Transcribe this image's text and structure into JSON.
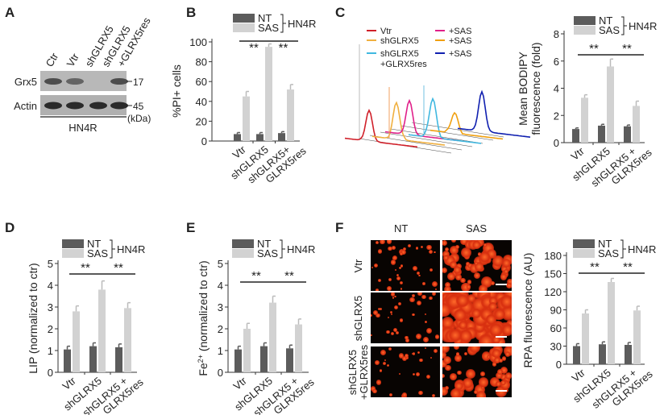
{
  "colors": {
    "NT": "#5c5c5c",
    "SAS": "#d2d2d2",
    "axis": "#333333"
  },
  "panel_labels": [
    "A",
    "B",
    "C",
    "D",
    "E",
    "F"
  ],
  "blot": {
    "lanes": [
      "Ctr",
      "Vtr",
      "shGLRX5",
      "shGLRX5",
      "+GLRX5res"
    ],
    "rows": [
      "Grx5",
      "Actin"
    ],
    "markers": [
      "17",
      "45"
    ],
    "unit": "(kDa)",
    "cell_line": "HN4R"
  },
  "flow": {
    "legend": [
      {
        "label": "Vtr",
        "color": "#d0202a"
      },
      {
        "label": "shGLRX5",
        "color": "#f0b040"
      },
      {
        "label": "shGLRX5",
        "label2": "+GLRX5res",
        "color": "#40b8e0"
      },
      {
        "label": "+SAS",
        "color": "#e0208a"
      },
      {
        "label": "+SAS",
        "color": "#f0a010"
      },
      {
        "label": "+SAS",
        "color": "#1020b0"
      }
    ]
  },
  "micrographs": {
    "columns": [
      "NT",
      "SAS"
    ],
    "rows": [
      [
        "Vtr"
      ],
      [
        "shGLRX5"
      ],
      [
        "shGLRX5",
        "+GLRX5res"
      ]
    ]
  },
  "chart_data": [
    {
      "id": "B",
      "type": "bar",
      "legend": {
        "entries": [
          "NT",
          "SAS"
        ],
        "group_label": "HN4R"
      },
      "categories": [
        [
          "Vtr"
        ],
        [
          "shGLRX5"
        ],
        [
          "shGLRX5+",
          "GLRX5res"
        ]
      ],
      "ylabel": [
        "%PI+ cells"
      ],
      "ylim": [
        0,
        100
      ],
      "yticks": [
        0,
        20,
        40,
        60,
        80,
        100
      ],
      "series": [
        {
          "name": "NT",
          "values": [
            7,
            7,
            8
          ],
          "errors": [
            1.5,
            1.5,
            1.5
          ]
        },
        {
          "name": "SAS",
          "values": [
            45,
            95,
            52
          ],
          "errors": [
            5,
            3,
            5
          ]
        }
      ],
      "significance": [
        {
          "from": 0,
          "to": 1,
          "label": "**"
        },
        {
          "from": 1,
          "to": 2,
          "label": "**"
        }
      ]
    },
    {
      "id": "C",
      "type": "bar",
      "legend": {
        "entries": [
          "NT",
          "SAS"
        ],
        "group_label": "HN4R"
      },
      "categories": [
        [
          "Vtr"
        ],
        [
          "shGLRX5"
        ],
        [
          "shGLRX5 +",
          "GLRX5res"
        ]
      ],
      "ylabel": [
        "Mean BODIPY",
        "fluorescence (fold)"
      ],
      "ylim": [
        0,
        8
      ],
      "yticks": [
        0,
        2,
        4,
        6,
        8
      ],
      "series": [
        {
          "name": "NT",
          "values": [
            1.0,
            1.25,
            1.2
          ],
          "errors": [
            0.08,
            0.1,
            0.1
          ]
        },
        {
          "name": "SAS",
          "values": [
            3.3,
            5.6,
            2.7
          ],
          "errors": [
            0.22,
            0.55,
            0.35
          ]
        }
      ],
      "significance": [
        {
          "from": 0,
          "to": 1,
          "label": "**"
        },
        {
          "from": 1,
          "to": 2,
          "label": "**"
        }
      ]
    },
    {
      "id": "D",
      "type": "bar",
      "legend": {
        "entries": [
          "NT",
          "SAS"
        ],
        "group_label": "HN4R"
      },
      "categories": [
        [
          "Vtr"
        ],
        [
          "shGLRX5"
        ],
        [
          "shGLRX5 +",
          "GLRX5res"
        ]
      ],
      "ylabel": [
        "LIP (normalized to ctr)"
      ],
      "ylim": [
        0,
        5
      ],
      "yticks": [
        0,
        1,
        2,
        3,
        4,
        5
      ],
      "series": [
        {
          "name": "NT",
          "values": [
            1.05,
            1.2,
            1.15
          ],
          "errors": [
            0.15,
            0.15,
            0.15
          ]
        },
        {
          "name": "SAS",
          "values": [
            2.8,
            3.8,
            2.95
          ],
          "errors": [
            0.25,
            0.4,
            0.25
          ]
        }
      ],
      "significance": [
        {
          "from": 0,
          "to": 1,
          "label": "**"
        },
        {
          "from": 1,
          "to": 2,
          "label": "**"
        }
      ]
    },
    {
      "id": "E",
      "type": "bar",
      "legend": {
        "entries": [
          "NT",
          "SAS"
        ],
        "group_label": "HN4R"
      },
      "categories": [
        [
          "Vtr"
        ],
        [
          "shGLRX5"
        ],
        [
          "shGLRX5 +",
          "GLRX5res"
        ]
      ],
      "ylabel": [
        "Fe",
        "2+",
        " (normalized to ctr)"
      ],
      "ylim": [
        0,
        5
      ],
      "yticks": [
        0,
        1,
        2,
        3,
        4,
        5
      ],
      "series": [
        {
          "name": "NT",
          "values": [
            1.05,
            1.2,
            1.1
          ],
          "errors": [
            0.15,
            0.15,
            0.15
          ]
        },
        {
          "name": "SAS",
          "values": [
            2.0,
            3.2,
            2.2
          ],
          "errors": [
            0.25,
            0.3,
            0.25
          ]
        }
      ],
      "significance": [
        {
          "from": 0,
          "to": 1,
          "label": "**"
        },
        {
          "from": 1,
          "to": 2,
          "label": "**"
        }
      ]
    },
    {
      "id": "F",
      "type": "bar",
      "legend": {
        "entries": [
          "NT",
          "SAS"
        ],
        "group_label": "HN4R"
      },
      "categories": [
        [
          "Vtr"
        ],
        [
          "shGLRX5"
        ],
        [
          "shGLRX5 +",
          "GLRX5res"
        ]
      ],
      "ylabel": [
        "RPA fluorescence (AU)"
      ],
      "ylim": [
        0,
        180
      ],
      "yticks": [
        0,
        30,
        60,
        90,
        120,
        150,
        180
      ],
      "series": [
        {
          "name": "NT",
          "values": [
            30,
            33,
            32
          ],
          "errors": [
            4,
            4,
            4
          ]
        },
        {
          "name": "SAS",
          "values": [
            84,
            136,
            89
          ],
          "errors": [
            6,
            6,
            7
          ]
        }
      ],
      "significance": [
        {
          "from": 0,
          "to": 1,
          "label": "**"
        },
        {
          "from": 1,
          "to": 2,
          "label": "**"
        }
      ]
    }
  ]
}
